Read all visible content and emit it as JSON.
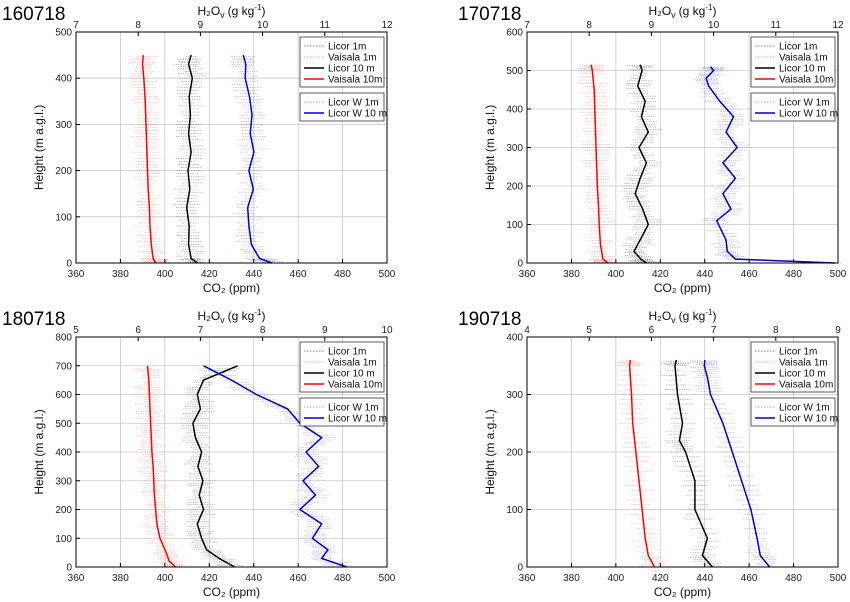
{
  "chart_data": [
    {
      "type": "line",
      "title": "160718",
      "xlabel": "CO₂ (ppm)",
      "x2label": "H₂O",
      "x2label_sub": "v",
      "x2label_unit": "(g kg",
      "x2label_sup": "-1",
      "x2label_close": ")",
      "ylabel": "Height (m a.g.l.)",
      "xlim": [
        360,
        500
      ],
      "x2lim": [
        7,
        12
      ],
      "ylim": [
        0,
        500
      ],
      "xticks": [
        360,
        380,
        400,
        420,
        440,
        460,
        480,
        500
      ],
      "x2ticks": [
        7,
        8,
        9,
        10,
        11,
        12
      ],
      "yticks": [
        0,
        100,
        200,
        300,
        400,
        500
      ],
      "grid": true,
      "legend1": [
        "Licor 1m",
        "Vaisala 1m",
        "Licor 10 m",
        "Vaisala 10m"
      ],
      "legend2": [
        "Licor W 1m",
        "Licor W 10 m"
      ],
      "series": [
        {
          "axis": "x2",
          "color": "#ff0000",
          "y": [
            0,
            10,
            40,
            80,
            120,
            160,
            200,
            240,
            280,
            320,
            360,
            400,
            430,
            450
          ],
          "values": [
            8.28,
            8.24,
            8.21,
            8.19,
            8.18,
            8.16,
            8.15,
            8.14,
            8.13,
            8.12,
            8.11,
            8.09,
            8.07,
            8.08
          ]
        },
        {
          "axis": "x2",
          "color": "#000000",
          "y": [
            0,
            10,
            40,
            80,
            120,
            160,
            200,
            240,
            280,
            320,
            360,
            400,
            430,
            450
          ],
          "values": [
            8.95,
            8.85,
            8.81,
            8.82,
            8.78,
            8.83,
            8.8,
            8.85,
            8.81,
            8.84,
            8.82,
            8.87,
            8.81,
            8.85
          ]
        },
        {
          "axis": "x2",
          "color": "#0000cc",
          "y": [
            0,
            10,
            40,
            80,
            120,
            160,
            200,
            240,
            280,
            320,
            360,
            400,
            430,
            450
          ],
          "values": [
            10.15,
            9.95,
            9.82,
            9.78,
            9.76,
            9.85,
            9.78,
            9.86,
            9.8,
            9.83,
            9.79,
            9.72,
            9.73,
            9.69
          ]
        }
      ]
    },
    {
      "type": "line",
      "title": "170718",
      "xlabel": "CO₂ (ppm)",
      "x2label": "H₂O",
      "x2label_sub": "v",
      "x2label_unit": "(g kg",
      "x2label_sup": "-1",
      "x2label_close": ")",
      "ylabel": "Height (m a.g.l.)",
      "xlim": [
        360,
        500
      ],
      "x2lim": [
        7,
        12
      ],
      "ylim": [
        0,
        600
      ],
      "xticks": [
        360,
        380,
        400,
        420,
        440,
        460,
        480,
        500
      ],
      "x2ticks": [
        7,
        8,
        9,
        10,
        11,
        12
      ],
      "yticks": [
        0,
        100,
        200,
        300,
        400,
        500,
        600
      ],
      "grid": true,
      "legend1": [
        "Licor 1m",
        "Vaisala 1m",
        "Licor 10 m",
        "Vaisala 10m"
      ],
      "legend2": [
        "Licor W 1m",
        "Licor W 10 m"
      ],
      "series": [
        {
          "axis": "x2",
          "color": "#ff0000",
          "y": [
            0,
            10,
            50,
            100,
            150,
            200,
            250,
            300,
            350,
            400,
            450,
            500,
            515
          ],
          "values": [
            8.3,
            8.22,
            8.18,
            8.16,
            8.15,
            8.13,
            8.12,
            8.11,
            8.1,
            8.09,
            8.08,
            8.05,
            8.03
          ]
        },
        {
          "axis": "x2",
          "color": "#000000",
          "y": [
            0,
            10,
            30,
            60,
            100,
            140,
            180,
            220,
            260,
            300,
            340,
            380,
            420,
            460,
            500,
            515
          ],
          "values": [
            8.92,
            8.83,
            8.72,
            8.82,
            8.95,
            8.86,
            8.74,
            8.82,
            8.92,
            8.8,
            8.95,
            8.84,
            8.9,
            8.78,
            8.85,
            8.82
          ]
        },
        {
          "axis": "x2",
          "color": "#0000cc",
          "y": [
            0,
            10,
            30,
            60,
            110,
            140,
            180,
            220,
            260,
            300,
            340,
            380,
            420,
            460,
            480,
            500,
            510
          ],
          "values": [
            11.95,
            10.35,
            10.22,
            10.2,
            10.05,
            10.28,
            10.15,
            10.35,
            10.15,
            10.38,
            10.2,
            10.32,
            10.1,
            9.92,
            9.88,
            10.0,
            9.95
          ]
        }
      ]
    },
    {
      "type": "line",
      "title": "180718",
      "xlabel": "CO₂ (ppm)",
      "x2label": "H₂O",
      "x2label_sub": "v",
      "x2label_unit": "(g kg",
      "x2label_sup": "-1",
      "x2label_close": ")",
      "ylabel": "Height (m a.g.l.)",
      "xlim": [
        360,
        500
      ],
      "x2lim": [
        5,
        10
      ],
      "ylim": [
        0,
        800
      ],
      "xticks": [
        360,
        380,
        400,
        420,
        440,
        460,
        480,
        500
      ],
      "x2ticks": [
        5,
        6,
        7,
        8,
        9,
        10
      ],
      "yticks": [
        0,
        100,
        200,
        300,
        400,
        500,
        600,
        700,
        800
      ],
      "grid": true,
      "legend1": [
        "Licor 1m",
        "Vaisala 1m",
        "Licor 10 m",
        "Vaisala 10m"
      ],
      "legend2": [
        "Licor W 1m",
        "Licor W 10 m"
      ],
      "series": [
        {
          "axis": "x2",
          "color": "#ff0000",
          "y": [
            0,
            20,
            50,
            100,
            150,
            200,
            250,
            300,
            350,
            400,
            450,
            500,
            550,
            600,
            650,
            700
          ],
          "values": [
            6.6,
            6.5,
            6.45,
            6.35,
            6.3,
            6.28,
            6.26,
            6.25,
            6.24,
            6.22,
            6.21,
            6.2,
            6.19,
            6.18,
            6.17,
            6.15
          ]
        },
        {
          "axis": "x2",
          "color": "#000000",
          "y": [
            0,
            30,
            60,
            100,
            150,
            200,
            250,
            300,
            350,
            400,
            450,
            500,
            550,
            600,
            650,
            700
          ],
          "values": [
            7.55,
            7.3,
            7.1,
            7.02,
            6.95,
            7.05,
            6.98,
            7.04,
            6.96,
            7.02,
            6.92,
            6.88,
            7.0,
            6.95,
            7.05,
            7.6
          ]
        },
        {
          "axis": "x2",
          "color": "#0000cc",
          "y": [
            0,
            30,
            60,
            100,
            150,
            200,
            250,
            300,
            350,
            400,
            450,
            500,
            550,
            600,
            650,
            700
          ],
          "values": [
            9.35,
            8.95,
            9.05,
            8.8,
            8.95,
            8.6,
            8.85,
            8.65,
            8.9,
            8.7,
            8.95,
            8.6,
            8.4,
            7.9,
            7.5,
            7.05
          ]
        }
      ]
    },
    {
      "type": "line",
      "title": "190718",
      "xlabel": "CO₂ (ppm)",
      "x2label": "H₂O",
      "x2label_sub": "v",
      "x2label_unit": "(g kg",
      "x2label_sup": "-1",
      "x2label_close": ")",
      "ylabel": "Height (m a.g.l.)",
      "xlim": [
        360,
        500
      ],
      "x2lim": [
        4,
        9
      ],
      "ylim": [
        0,
        400
      ],
      "xticks": [
        360,
        380,
        400,
        420,
        440,
        460,
        480,
        500
      ],
      "x2ticks": [
        4,
        5,
        6,
        7,
        8,
        9
      ],
      "yticks": [
        0,
        100,
        200,
        300,
        400
      ],
      "grid": true,
      "legend1": [
        "Licor 1m",
        "Vaisala 1m",
        "Licor 10 m",
        "Vaisala 10m"
      ],
      "legend2": [
        "Licor W 1m",
        "Licor W 10 m"
      ],
      "series": [
        {
          "axis": "x2",
          "color": "#ff0000",
          "y": [
            0,
            20,
            50,
            100,
            150,
            200,
            250,
            300,
            350,
            360
          ],
          "values": [
            6.05,
            5.95,
            5.9,
            5.85,
            5.8,
            5.75,
            5.7,
            5.68,
            5.65,
            5.66
          ]
        },
        {
          "axis": "x2",
          "color": "#000000",
          "y": [
            0,
            20,
            50,
            100,
            150,
            200,
            220,
            250,
            300,
            350,
            360
          ],
          "values": [
            6.98,
            6.82,
            6.9,
            6.7,
            6.7,
            6.55,
            6.45,
            6.5,
            6.42,
            6.38,
            6.4
          ]
        },
        {
          "axis": "x2",
          "color": "#0000cc",
          "y": [
            0,
            20,
            50,
            100,
            150,
            200,
            250,
            300,
            330,
            350,
            360
          ],
          "values": [
            7.9,
            7.75,
            7.7,
            7.6,
            7.45,
            7.3,
            7.15,
            6.95,
            6.9,
            6.85,
            6.86
          ]
        }
      ]
    }
  ]
}
